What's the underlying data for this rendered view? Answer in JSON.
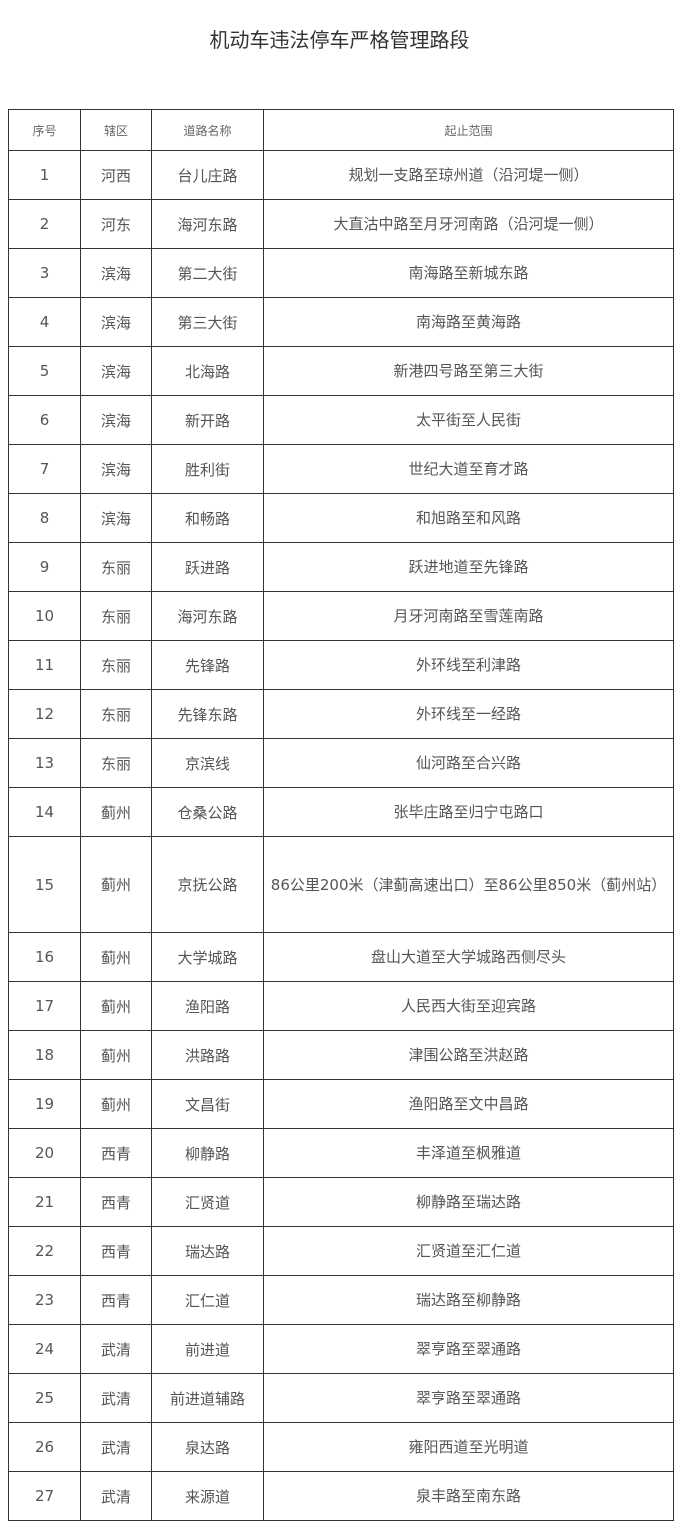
{
  "title": "机动车违法停车严格管理路段",
  "headers": [
    "序号",
    "辖区",
    "道路名称",
    "起止范围"
  ],
  "rows": [
    [
      "1",
      "河西",
      "台儿庄路",
      "规划一支路至琼州道（沿河堤一侧）"
    ],
    [
      "2",
      "河东",
      "海河东路",
      "大直沽中路至月牙河南路（沿河堤一侧）"
    ],
    [
      "3",
      "滨海",
      "第二大街",
      "南海路至新城东路"
    ],
    [
      "4",
      "滨海",
      "第三大街",
      "南海路至黄海路"
    ],
    [
      "5",
      "滨海",
      "北海路",
      "新港四号路至第三大街"
    ],
    [
      "6",
      "滨海",
      "新开路",
      "太平街至人民街"
    ],
    [
      "7",
      "滨海",
      "胜利街",
      "世纪大道至育才路"
    ],
    [
      "8",
      "滨海",
      "和畅路",
      "和旭路至和风路"
    ],
    [
      "9",
      "东丽",
      "跃进路",
      "跃进地道至先锋路"
    ],
    [
      "10",
      "东丽",
      "海河东路",
      "月牙河南路至雪莲南路"
    ],
    [
      "11",
      "东丽",
      "先锋路",
      "外环线至利津路"
    ],
    [
      "12",
      "东丽",
      "先锋东路",
      "外环线至一经路"
    ],
    [
      "13",
      "东丽",
      "京滨线",
      "仙河路至合兴路"
    ],
    [
      "14",
      "蓟州",
      "仓桑公路",
      "张毕庄路至归宁屯路口"
    ],
    [
      "15",
      "蓟州",
      "京抚公路",
      "86公里200米（津蓟高速出口）至86公里850米（蓟州站）"
    ],
    [
      "16",
      "蓟州",
      "大学城路",
      "盘山大道至大学城路西侧尽头"
    ],
    [
      "17",
      "蓟州",
      "渔阳路",
      "人民西大街至迎宾路"
    ],
    [
      "18",
      "蓟州",
      "洪路路",
      "津围公路至洪赵路"
    ],
    [
      "19",
      "蓟州",
      "文昌街",
      "渔阳路至文中昌路"
    ],
    [
      "20",
      "西青",
      "柳静路",
      "丰泽道至枫雅道"
    ],
    [
      "21",
      "西青",
      "汇贤道",
      "柳静路至瑞达路"
    ],
    [
      "22",
      "西青",
      "瑞达路",
      "汇贤道至汇仁道"
    ],
    [
      "23",
      "西青",
      "汇仁道",
      "瑞达路至柳静路"
    ],
    [
      "24",
      "武清",
      "前进道",
      "翠亨路至翠通路"
    ],
    [
      "25",
      "武清",
      "前进道辅路",
      "翠亨路至翠通路"
    ],
    [
      "26",
      "武清",
      "泉达路",
      "雍阳西道至光明道"
    ],
    [
      "27",
      "武清",
      "来源道",
      "泉丰路至南东路"
    ]
  ]
}
